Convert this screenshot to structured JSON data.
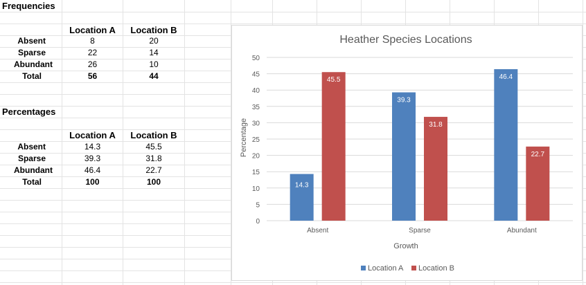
{
  "colors": {
    "location_a": "#4f81bd",
    "location_b": "#c0504d",
    "gridline": "#d9d9d9",
    "sheet_grid": "#e3e3e3"
  },
  "frequencies": {
    "title": "Frequencies",
    "col_a": "Location A",
    "col_b": "Location B",
    "rows": [
      {
        "label": "Absent",
        "a": "8",
        "b": "20"
      },
      {
        "label": "Sparse",
        "a": "22",
        "b": "14"
      },
      {
        "label": "Abundant",
        "a": "26",
        "b": "10"
      },
      {
        "label": "Total",
        "a": "56",
        "b": "44"
      }
    ]
  },
  "percentages": {
    "title": "Percentages",
    "col_a": "Location A",
    "col_b": "Location B",
    "rows": [
      {
        "label": "Absent",
        "a": "14.3",
        "b": "45.5"
      },
      {
        "label": "Sparse",
        "a": "39.3",
        "b": "31.8"
      },
      {
        "label": "Abundant",
        "a": "46.4",
        "b": "22.7"
      },
      {
        "label": "Total",
        "a": "100",
        "b": "100"
      }
    ]
  },
  "chart_data": {
    "type": "bar",
    "title": "Heather Species Locations",
    "xlabel": "Growth",
    "ylabel": "Percentage",
    "categories": [
      "Absent",
      "Sparse",
      "Abundant"
    ],
    "series": [
      {
        "name": "Location A",
        "values": [
          14.3,
          39.3,
          46.4
        ]
      },
      {
        "name": "Location B",
        "values": [
          45.5,
          31.8,
          22.7
        ]
      }
    ],
    "ylim": [
      0,
      50
    ],
    "yticks": [
      0,
      5,
      10,
      15,
      20,
      25,
      30,
      35,
      40,
      45,
      50
    ],
    "grid": true,
    "legend": "bottom"
  }
}
